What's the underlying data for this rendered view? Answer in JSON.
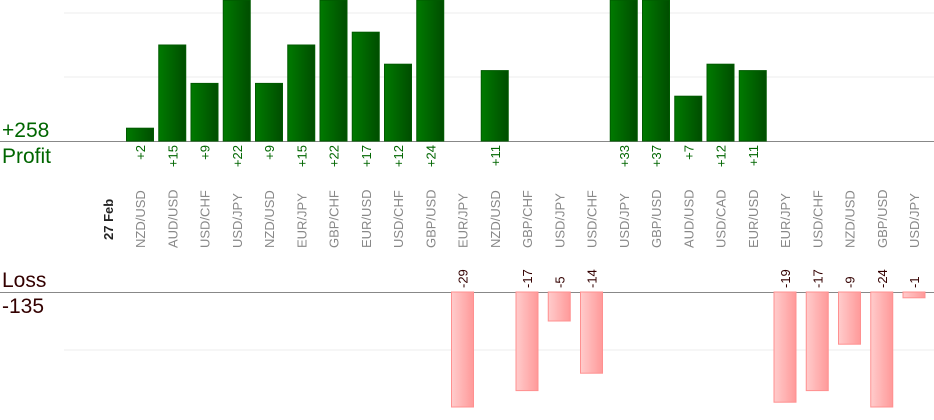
{
  "chart_data": {
    "type": "bar",
    "date_label": "27 Feb",
    "profit_total": "+258",
    "profit_label": "Profit",
    "loss_label": "Loss",
    "loss_total": "-135",
    "categories": [
      "NZD/USD",
      "AUD/USD",
      "USD/CHF",
      "USD/JPY",
      "NZD/USD",
      "EUR/JPY",
      "GBP/CHF",
      "EUR/USD",
      "USD/CHF",
      "GBP/USD",
      "EUR/JPY",
      "NZD/USD",
      "GBP/CHF",
      "USD/JPY",
      "USD/CHF",
      "USD/JPY",
      "GBP/USD",
      "AUD/USD",
      "USD/CAD",
      "EUR/USD",
      "EUR/JPY",
      "USD/CHF",
      "NZD/USD",
      "GBP/USD",
      "USD/JPY"
    ],
    "series": [
      {
        "name": "Profit",
        "values": [
          2,
          15,
          9,
          22,
          9,
          15,
          22,
          17,
          12,
          24,
          null,
          11,
          null,
          null,
          null,
          33,
          37,
          7,
          12,
          11,
          null,
          null,
          null,
          null,
          null
        ]
      },
      {
        "name": "Loss",
        "values": [
          null,
          null,
          null,
          null,
          null,
          null,
          null,
          null,
          null,
          null,
          -29,
          null,
          -17,
          -5,
          -14,
          null,
          null,
          null,
          null,
          null,
          -19,
          -17,
          -9,
          -24,
          -1
        ]
      }
    ],
    "grid": true,
    "colors": {
      "profit": "#006600",
      "loss": "#ff9999",
      "loss_text": "#330000",
      "category_text": "#888888"
    }
  }
}
